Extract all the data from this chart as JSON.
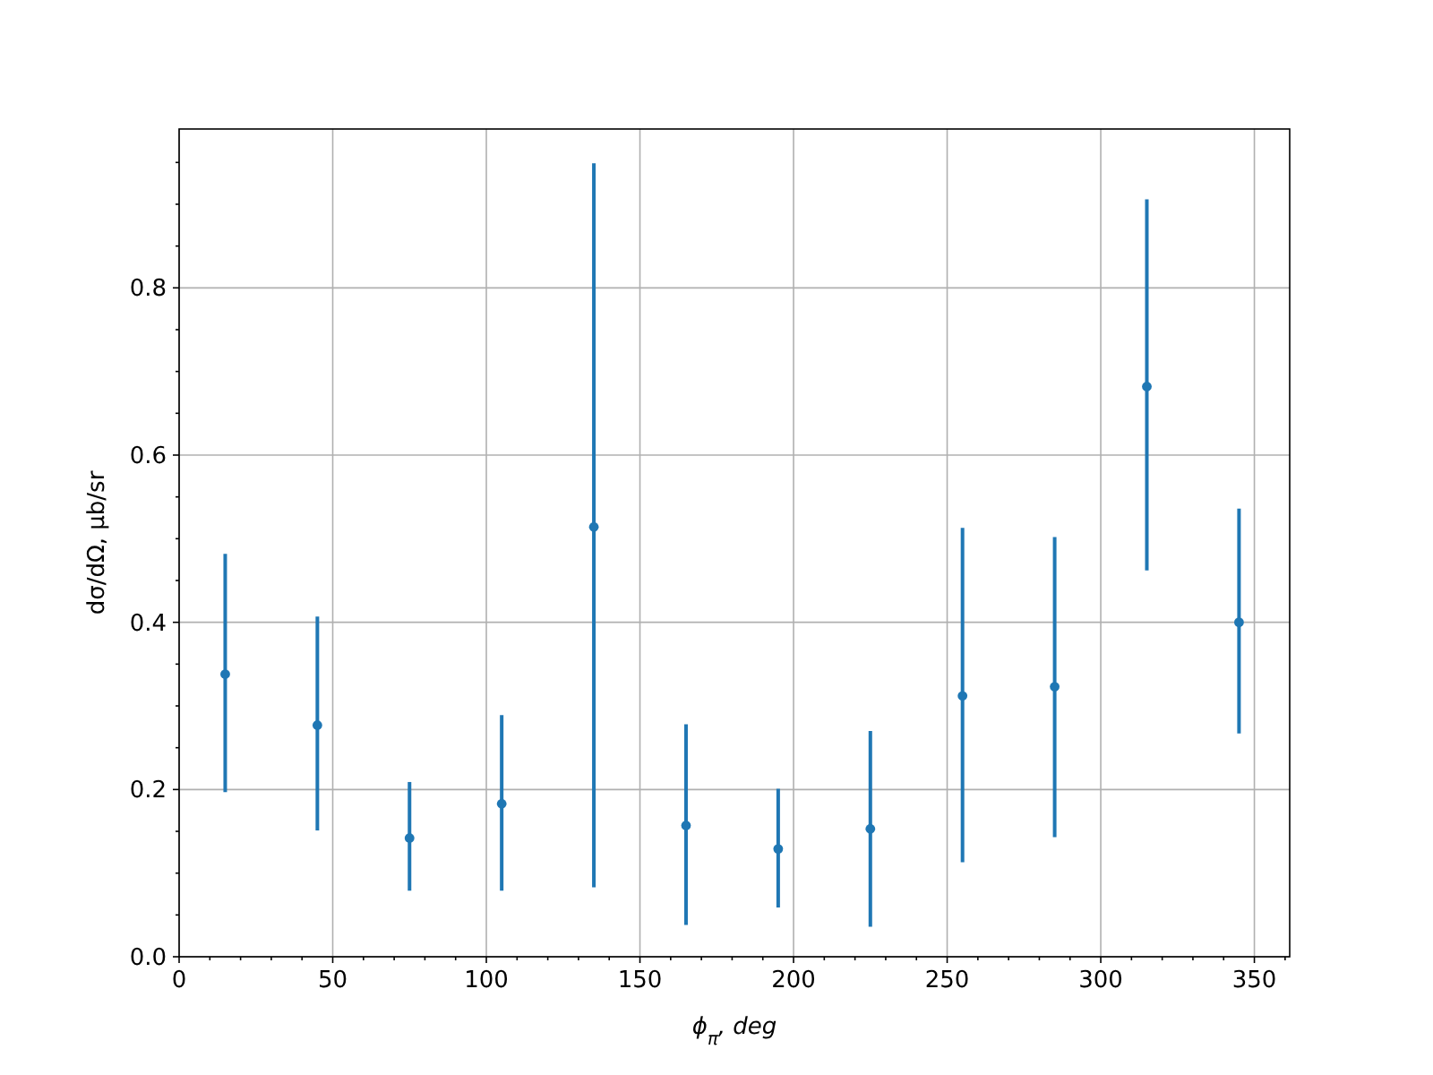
{
  "chart_data": {
    "type": "scatter",
    "xlabel": "ϕ$_{π}$, deg",
    "ylabel": "dσ/dΩ, μb/sr",
    "x": [
      15,
      45,
      75,
      105,
      135,
      165,
      195,
      225,
      255,
      285,
      315,
      345
    ],
    "series": [
      {
        "color": "#1f77b4",
        "values": [
          0.338,
          0.277,
          0.142,
          0.183,
          0.514,
          0.157,
          0.129,
          0.153,
          0.312,
          0.323,
          0.682,
          0.4
        ],
        "errors": [
          [
            0.197,
            0.482
          ],
          [
            0.151,
            0.407
          ],
          [
            0.079,
            0.209
          ],
          [
            0.079,
            0.289
          ],
          [
            0.083,
            0.949
          ],
          [
            0.038,
            0.278
          ],
          [
            0.059,
            0.201
          ],
          [
            0.036,
            0.27
          ],
          [
            0.113,
            0.513
          ],
          [
            0.143,
            0.502
          ],
          [
            0.462,
            0.906
          ],
          [
            0.267,
            0.536
          ]
        ]
      }
    ],
    "marker": "circle",
    "grid": true,
    "xlim": [
      0,
      361.5
    ],
    "xticks": [
      0,
      {
        "value": 10,
        "label": null
      },
      {
        "value": 20,
        "label": null
      },
      {
        "value": 30,
        "label": null
      },
      {
        "value": 40,
        "label": null
      },
      50,
      {
        "value": 60,
        "label": null
      },
      {
        "value": 70,
        "label": null
      },
      {
        "value": 80,
        "label": null
      },
      {
        "value": 90,
        "label": null
      },
      100,
      {
        "value": 110,
        "label": null
      },
      {
        "value": 120,
        "label": null
      },
      {
        "value": 130,
        "label": null
      },
      {
        "value": 140,
        "label": null
      },
      150,
      {
        "value": 160,
        "label": null
      },
      {
        "value": 170,
        "label": null
      },
      {
        "value": 180,
        "label": null
      },
      {
        "value": 190,
        "label": null
      },
      200,
      {
        "value": 210,
        "label": null
      },
      {
        "value": 220,
        "label": null
      },
      {
        "value": 230,
        "label": null
      },
      {
        "value": 240,
        "label": null
      },
      250,
      {
        "value": 260,
        "label": null
      },
      {
        "value": 270,
        "label": null
      },
      {
        "value": 280,
        "label": null
      },
      {
        "value": 290,
        "label": null
      },
      300,
      {
        "value": 310,
        "label": null
      },
      {
        "value": 320,
        "label": null
      },
      {
        "value": 330,
        "label": null
      },
      {
        "value": 340,
        "label": null
      },
      350,
      {
        "value": 360,
        "label": null
      }
    ],
    "ylim": [
      0,
      0.99
    ],
    "yticks": [
      {
        "value": 0,
        "label": "0.0"
      },
      {
        "value": 0.05,
        "label": null
      },
      {
        "value": 0.1,
        "label": null
      },
      {
        "value": 0.15,
        "label": null
      },
      {
        "value": 0.2,
        "label": "0.2"
      },
      {
        "value": 0.25,
        "label": null
      },
      {
        "value": 0.3,
        "label": null
      },
      {
        "value": 0.35,
        "label": null
      },
      {
        "value": 0.4,
        "label": "0.4"
      },
      {
        "value": 0.45,
        "label": null
      },
      {
        "value": 0.5,
        "label": null
      },
      {
        "value": 0.55,
        "label": null
      },
      {
        "value": 0.6,
        "label": "0.6"
      },
      {
        "value": 0.65,
        "label": null
      },
      {
        "value": 0.7,
        "label": null
      },
      {
        "value": 0.75,
        "label": null
      },
      {
        "value": 0.8,
        "label": "0.8"
      },
      {
        "value": 0.85,
        "label": null
      },
      {
        "value": 0.9,
        "label": null
      },
      {
        "value": 0.95,
        "label": null
      }
    ]
  }
}
